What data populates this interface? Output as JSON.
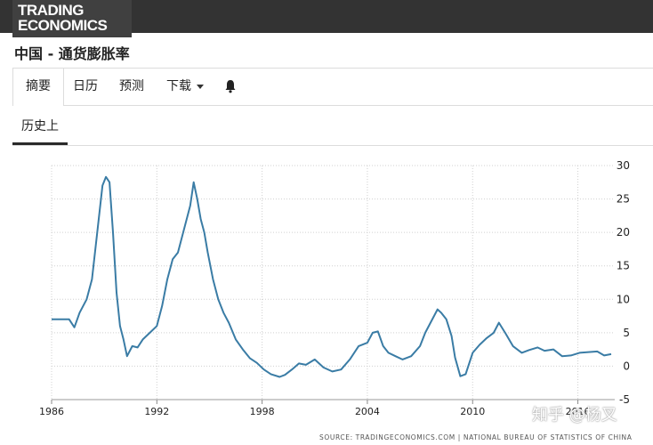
{
  "header": {
    "logo_line1": "TRADING",
    "logo_line2": "ECONOMICS",
    "page_title": "中国 - 通货膨胀率"
  },
  "nav": {
    "tabs": [
      {
        "label": "摘要",
        "active": true
      },
      {
        "label": "日历",
        "active": false
      },
      {
        "label": "预测",
        "active": false
      },
      {
        "label": "下载",
        "active": false,
        "dropdown": true
      }
    ],
    "bell_icon": "bell-icon"
  },
  "subnav": {
    "tab_label": "历史上"
  },
  "chart_data": {
    "type": "line",
    "title": "",
    "xlabel": "",
    "ylabel": "",
    "x_ticks": [
      "1986",
      "1992",
      "1998",
      "2004",
      "2010",
      "2016"
    ],
    "y_ticks": [
      -5,
      0,
      5,
      10,
      15,
      20,
      25,
      30
    ],
    "ylim": [
      -5,
      30
    ],
    "xlim": [
      1986,
      2018
    ],
    "grid": true,
    "line_color": "#3a7ca5",
    "series": [
      {
        "name": "",
        "x": [
          1986.0,
          1986.5,
          1987.0,
          1987.3,
          1987.6,
          1988.0,
          1988.3,
          1988.6,
          1988.9,
          1989.1,
          1989.3,
          1989.5,
          1989.7,
          1989.9,
          1990.1,
          1990.3,
          1990.6,
          1990.9,
          1991.2,
          1991.6,
          1992.0,
          1992.3,
          1992.6,
          1992.9,
          1993.2,
          1993.6,
          1993.9,
          1994.1,
          1994.3,
          1994.5,
          1994.7,
          1994.9,
          1995.2,
          1995.5,
          1995.8,
          1996.1,
          1996.5,
          1996.9,
          1997.3,
          1997.7,
          1998.1,
          1998.5,
          1999.0,
          1999.3,
          1999.7,
          2000.1,
          2000.5,
          2001.0,
          2001.5,
          2002.0,
          2002.5,
          2003.0,
          2003.5,
          2004.0,
          2004.3,
          2004.6,
          2004.9,
          2005.2,
          2005.6,
          2006.0,
          2006.5,
          2007.0,
          2007.3,
          2007.6,
          2008.0,
          2008.2,
          2008.5,
          2008.8,
          2009.0,
          2009.3,
          2009.6,
          2010.0,
          2010.4,
          2010.8,
          2011.2,
          2011.5,
          2011.9,
          2012.3,
          2012.8,
          2013.2,
          2013.7,
          2014.1,
          2014.6,
          2015.1,
          2015.6,
          2016.1,
          2016.6,
          2017.1,
          2017.5,
          2017.9
        ],
        "y": [
          7,
          7,
          7,
          5.8,
          8,
          10,
          13,
          20,
          27,
          28.3,
          27.5,
          20,
          11,
          6,
          4,
          1.5,
          3,
          2.8,
          4,
          5,
          6,
          9,
          13,
          16,
          17,
          21,
          24,
          27.5,
          25,
          22,
          20,
          17,
          13,
          10,
          8,
          6.5,
          4,
          2.5,
          1.2,
          0.5,
          -0.5,
          -1.2,
          -1.6,
          -1.3,
          -0.5,
          0.4,
          0.2,
          1,
          -0.2,
          -0.8,
          -0.5,
          1,
          3,
          3.5,
          5,
          5.2,
          3,
          2,
          1.5,
          1,
          1.5,
          3,
          5,
          6.5,
          8.5,
          8,
          7,
          4.5,
          1.3,
          -1.5,
          -1.2,
          2,
          3.2,
          4.2,
          5,
          6.5,
          4.8,
          3,
          2,
          2.4,
          2.8,
          2.3,
          2.5,
          1.5,
          1.6,
          2,
          2.1,
          2.2,
          1.6,
          1.8
        ]
      }
    ],
    "source_text": "SOURCE: TRADINGECONOMICS.COM  |  NATIONAL BUREAU OF STATISTICS OF CHINA"
  },
  "watermark": "知乎 @杨叉"
}
